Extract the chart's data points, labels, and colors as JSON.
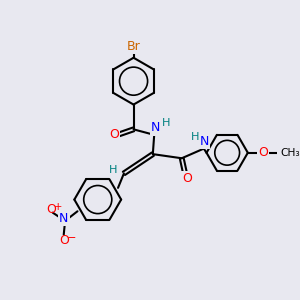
{
  "bg_color": "#e8e8f0",
  "bond_color": "#000000",
  "bond_width": 1.5,
  "atom_colors": {
    "Br": "#cc6600",
    "O": "#ff0000",
    "N": "#0000ff",
    "H": "#008080",
    "C": "#000000"
  },
  "font_size": 9,
  "figsize": [
    3.0,
    3.0
  ],
  "dpi": 100
}
